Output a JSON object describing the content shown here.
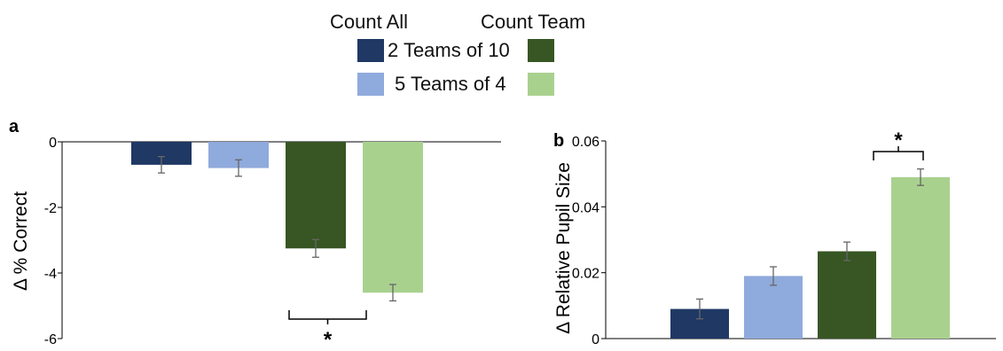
{
  "legend": {
    "header_left": "Count All",
    "header_right": "Count Team",
    "rows": [
      {
        "label": "2 Teams of 10",
        "left_color": "#1f3864",
        "right_color": "#375623"
      },
      {
        "label": "5 Teams of 4",
        "left_color": "#8faadc",
        "right_color": "#a9d18e"
      }
    ]
  },
  "chart_data": [
    {
      "type": "bar",
      "panel_label": "a",
      "ylabel": "Δ % Correct",
      "ylim": [
        -6,
        0
      ],
      "yticks": [
        "0",
        "-2",
        "-4",
        "-6"
      ],
      "tick_values": [
        0,
        -2,
        -4,
        -6
      ],
      "categories": [
        "Count All, 2 Teams of 10",
        "Count All, 5 Teams of 4",
        "Count Team, 2 Teams of 10",
        "Count Team, 5 Teams of 4"
      ],
      "values": [
        -0.7,
        -0.8,
        -3.25,
        -4.6
      ],
      "errors": [
        0.25,
        0.25,
        0.27,
        0.25
      ],
      "colors": [
        "#1f3864",
        "#8faadc",
        "#375623",
        "#a9d18e"
      ],
      "significance": {
        "between": [
          2,
          3
        ],
        "label": "*",
        "position": "below"
      },
      "grid": false
    },
    {
      "type": "bar",
      "panel_label": "b",
      "ylabel": "Δ Relative Pupil Size",
      "ylim": [
        0,
        0.06
      ],
      "yticks": [
        "0",
        "0.02",
        "0.04",
        "0.06"
      ],
      "tick_values": [
        0,
        0.02,
        0.04,
        0.06
      ],
      "categories": [
        "Count All, 2 Teams of 10",
        "Count All, 5 Teams of 4",
        "Count Team, 2 Teams of 10",
        "Count Team, 5 Teams of 4"
      ],
      "values": [
        0.009,
        0.019,
        0.0265,
        0.049
      ],
      "errors": [
        0.003,
        0.0028,
        0.0028,
        0.0025
      ],
      "colors": [
        "#1f3864",
        "#8faadc",
        "#375623",
        "#a9d18e"
      ],
      "significance": {
        "between": [
          2,
          3
        ],
        "label": "*",
        "position": "above"
      },
      "grid": false
    }
  ]
}
